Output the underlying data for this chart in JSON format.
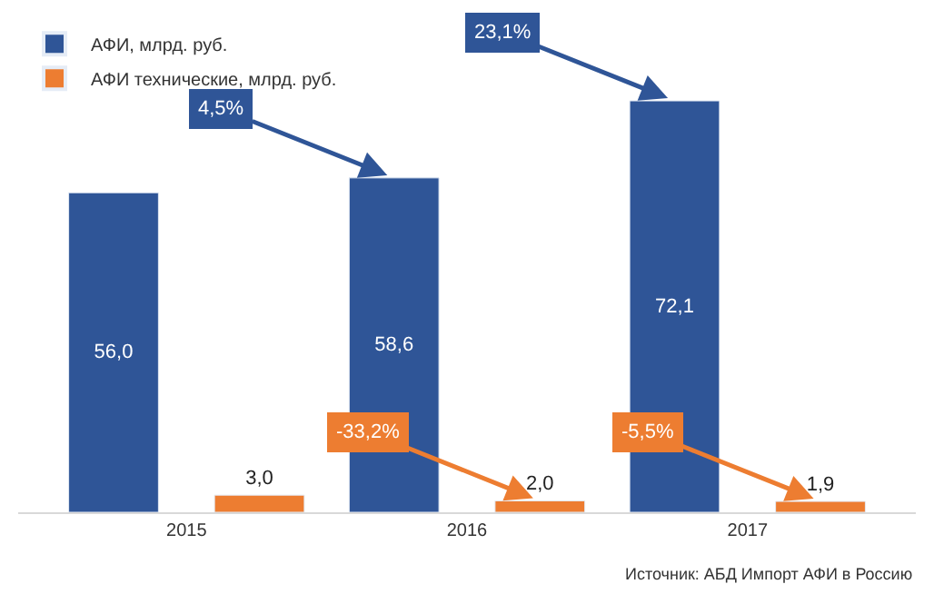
{
  "chart_data": {
    "type": "bar",
    "categories": [
      "2015",
      "2016",
      "2017"
    ],
    "series": [
      {
        "name": "АФИ, млрд. руб.",
        "color": "#2f5597",
        "values": [
          56.0,
          58.6,
          72.1
        ],
        "value_labels": [
          "56,0",
          "58,6",
          "72,1"
        ]
      },
      {
        "name": "АФИ технические, млрд. руб.",
        "color": "#ed7d31",
        "values": [
          3.0,
          2.0,
          1.9
        ],
        "value_labels": [
          "3,0",
          "2,0",
          "1,9"
        ]
      }
    ],
    "ylim": [
      0,
      85
    ],
    "tick_labels": "x",
    "legend": "top left",
    "annotations": [
      "4,5%",
      "23,1%",
      "-33,2%",
      "-5,5%",
      "Источник: АБД Импорт АФИ в Россию"
    ]
  }
}
